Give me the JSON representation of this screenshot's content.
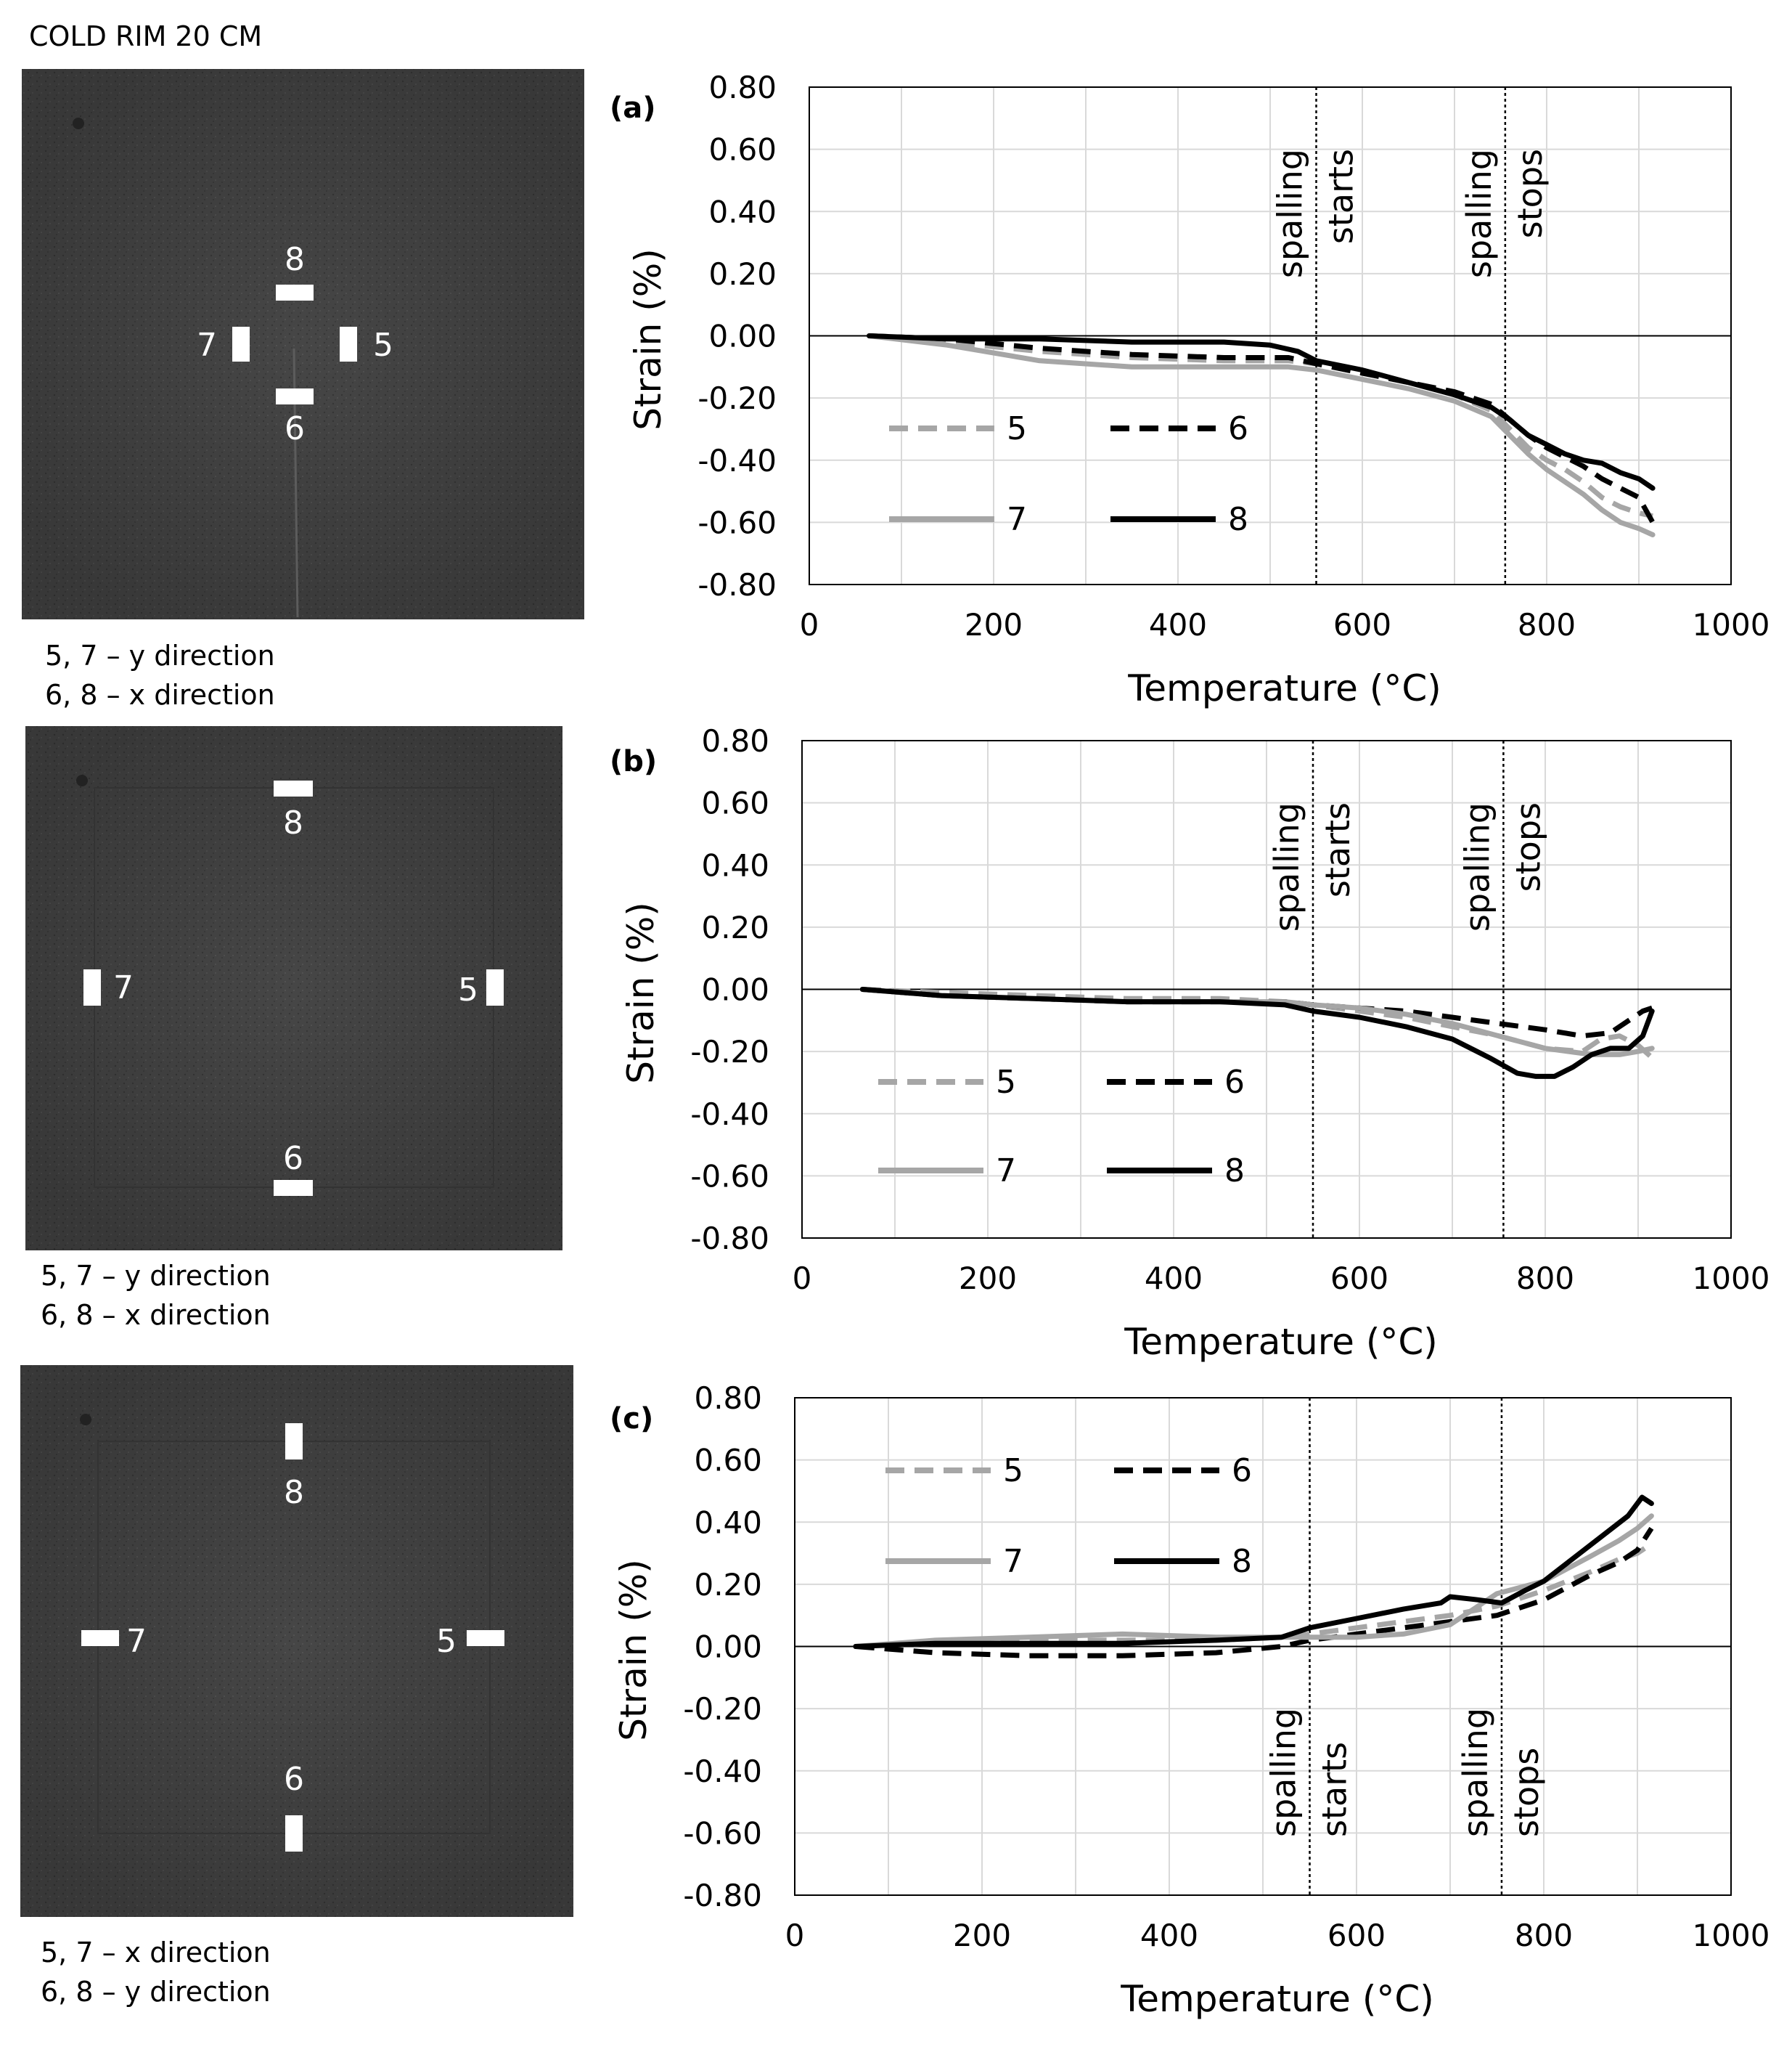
{
  "header": "COLD RIM 20 CM",
  "photos": [
    {
      "caption_lines": [
        "5, 7 – y direction",
        "6, 8 – x direction"
      ],
      "gauge_labels": [
        "5",
        "6",
        "7",
        "8"
      ]
    },
    {
      "caption_lines": [
        "5, 7 – y direction",
        "6, 8 – x direction"
      ],
      "gauge_labels": [
        "5",
        "6",
        "7",
        "8"
      ]
    },
    {
      "caption_lines": [
        "5, 7 – x direction",
        "6, 8 – y direction"
      ],
      "gauge_labels": [
        "5",
        "6",
        "7",
        "8"
      ]
    }
  ],
  "chart_data": [
    {
      "type": "line",
      "panel_label": "(a)",
      "xlabel": "Temperature (°C)",
      "ylabel": "Strain (%)",
      "xlim": [
        0,
        1000
      ],
      "ylim": [
        -0.8,
        0.8
      ],
      "xticks": [
        "0",
        "200",
        "400",
        "600",
        "800",
        "1000"
      ],
      "yticks": [
        "0.80",
        "0.60",
        "0.40",
        "0.20",
        "0.00",
        "-0.20",
        "-0.40",
        "-0.60",
        "-0.80"
      ],
      "grid": true,
      "legend_position": "lower-left",
      "markers": [
        {
          "x": 550,
          "lines": [
            "spalling",
            "starts"
          ]
        },
        {
          "x": 755,
          "lines": [
            "spalling",
            "stops"
          ]
        }
      ],
      "series": [
        {
          "name": "5",
          "color": "#a6a6a6",
          "dash": "dashed",
          "x": [
            65,
            150,
            250,
            350,
            450,
            520,
            550,
            600,
            650,
            700,
            740,
            760,
            780,
            800,
            820,
            840,
            860,
            880,
            900,
            915
          ],
          "y": [
            0,
            -0.02,
            -0.05,
            -0.07,
            -0.08,
            -0.08,
            -0.09,
            -0.12,
            -0.15,
            -0.19,
            -0.24,
            -0.3,
            -0.36,
            -0.4,
            -0.43,
            -0.47,
            -0.52,
            -0.55,
            -0.57,
            -0.58
          ]
        },
        {
          "name": "6",
          "color": "#000000",
          "dash": "dashed",
          "x": [
            65,
            150,
            250,
            350,
            450,
            520,
            550,
            600,
            650,
            700,
            740,
            760,
            780,
            800,
            820,
            840,
            860,
            880,
            900,
            915
          ],
          "y": [
            0,
            -0.01,
            -0.04,
            -0.06,
            -0.07,
            -0.07,
            -0.09,
            -0.12,
            -0.15,
            -0.18,
            -0.22,
            -0.27,
            -0.32,
            -0.36,
            -0.39,
            -0.42,
            -0.46,
            -0.49,
            -0.52,
            -0.6
          ]
        },
        {
          "name": "7",
          "color": "#a6a6a6",
          "dash": "solid",
          "x": [
            65,
            150,
            250,
            350,
            450,
            520,
            550,
            600,
            650,
            700,
            740,
            760,
            780,
            800,
            820,
            840,
            860,
            880,
            900,
            915
          ],
          "y": [
            0,
            -0.03,
            -0.08,
            -0.1,
            -0.1,
            -0.1,
            -0.11,
            -0.14,
            -0.17,
            -0.21,
            -0.26,
            -0.32,
            -0.38,
            -0.43,
            -0.47,
            -0.51,
            -0.56,
            -0.6,
            -0.62,
            -0.64
          ]
        },
        {
          "name": "8",
          "color": "#000000",
          "dash": "solid",
          "x": [
            65,
            150,
            250,
            350,
            450,
            500,
            530,
            550,
            600,
            650,
            700,
            740,
            760,
            780,
            800,
            820,
            840,
            860,
            880,
            900,
            915
          ],
          "y": [
            0,
            -0.01,
            -0.01,
            -0.02,
            -0.02,
            -0.03,
            -0.05,
            -0.08,
            -0.11,
            -0.15,
            -0.19,
            -0.23,
            -0.27,
            -0.32,
            -0.35,
            -0.38,
            -0.4,
            -0.41,
            -0.44,
            -0.46,
            -0.49
          ]
        }
      ]
    },
    {
      "type": "line",
      "panel_label": "(b)",
      "xlabel": "Temperature (°C)",
      "ylabel": "Strain (%)",
      "xlim": [
        0,
        1000
      ],
      "ylim": [
        -0.8,
        0.8
      ],
      "xticks": [
        "0",
        "200",
        "400",
        "600",
        "800",
        "1000"
      ],
      "yticks": [
        "0.80",
        "0.60",
        "0.40",
        "0.20",
        "0.00",
        "-0.20",
        "-0.40",
        "-0.60",
        "-0.80"
      ],
      "grid": true,
      "legend_position": "lower-left",
      "markers": [
        {
          "x": 550,
          "lines": [
            "spalling",
            "starts"
          ]
        },
        {
          "x": 755,
          "lines": [
            "spalling",
            "stops"
          ]
        }
      ],
      "series": [
        {
          "name": "5",
          "color": "#a6a6a6",
          "dash": "dashed",
          "x": [
            65,
            150,
            250,
            350,
            450,
            520,
            550,
            600,
            650,
            700,
            750,
            800,
            840,
            860,
            880,
            900,
            915
          ],
          "y": [
            0,
            -0.01,
            -0.02,
            -0.03,
            -0.03,
            -0.04,
            -0.05,
            -0.07,
            -0.09,
            -0.12,
            -0.15,
            -0.19,
            -0.2,
            -0.16,
            -0.15,
            -0.18,
            -0.22
          ]
        },
        {
          "name": "6",
          "color": "#000000",
          "dash": "dashed",
          "x": [
            65,
            150,
            250,
            350,
            450,
            520,
            550,
            600,
            650,
            700,
            750,
            800,
            840,
            870,
            890,
            905,
            915
          ],
          "y": [
            0,
            -0.02,
            -0.03,
            -0.04,
            -0.04,
            -0.04,
            -0.05,
            -0.06,
            -0.07,
            -0.09,
            -0.11,
            -0.13,
            -0.15,
            -0.14,
            -0.1,
            -0.07,
            -0.06
          ]
        },
        {
          "name": "7",
          "color": "#a6a6a6",
          "dash": "solid",
          "x": [
            65,
            150,
            250,
            350,
            450,
            520,
            550,
            600,
            650,
            700,
            750,
            800,
            850,
            880,
            900,
            915
          ],
          "y": [
            0,
            -0.02,
            -0.03,
            -0.04,
            -0.04,
            -0.04,
            -0.05,
            -0.06,
            -0.08,
            -0.11,
            -0.15,
            -0.19,
            -0.21,
            -0.21,
            -0.2,
            -0.19
          ]
        },
        {
          "name": "8",
          "color": "#000000",
          "dash": "solid",
          "x": [
            65,
            150,
            250,
            350,
            450,
            520,
            550,
            600,
            650,
            700,
            740,
            770,
            790,
            810,
            830,
            850,
            870,
            890,
            905,
            915
          ],
          "y": [
            0,
            -0.02,
            -0.03,
            -0.04,
            -0.04,
            -0.05,
            -0.07,
            -0.09,
            -0.12,
            -0.16,
            -0.22,
            -0.27,
            -0.28,
            -0.28,
            -0.25,
            -0.21,
            -0.19,
            -0.19,
            -0.15,
            -0.07
          ]
        }
      ]
    },
    {
      "type": "line",
      "panel_label": "(c)",
      "xlabel": "Temperature (°C)",
      "ylabel": "Strain (%)",
      "xlim": [
        0,
        1000
      ],
      "ylim": [
        -0.8,
        0.8
      ],
      "xticks": [
        "0",
        "200",
        "400",
        "600",
        "800",
        "1000"
      ],
      "yticks": [
        "0.80",
        "0.60",
        "0.40",
        "0.20",
        "0.00",
        "-0.20",
        "-0.40",
        "-0.60",
        "-0.80"
      ],
      "grid": true,
      "legend_position": "upper-left",
      "markers": [
        {
          "x": 550,
          "lines": [
            "spalling",
            "starts"
          ]
        },
        {
          "x": 755,
          "lines": [
            "spalling",
            "stops"
          ]
        }
      ],
      "series": [
        {
          "name": "5",
          "color": "#a6a6a6",
          "dash": "dashed",
          "x": [
            65,
            150,
            250,
            350,
            450,
            520,
            550,
            600,
            650,
            700,
            750,
            800,
            850,
            880,
            900,
            915
          ],
          "y": [
            0,
            0.01,
            0.02,
            0.02,
            0.02,
            0.03,
            0.04,
            0.06,
            0.08,
            0.1,
            0.13,
            0.18,
            0.24,
            0.28,
            0.3,
            0.33
          ]
        },
        {
          "name": "6",
          "color": "#000000",
          "dash": "dashed",
          "x": [
            65,
            150,
            250,
            300,
            350,
            450,
            520,
            550,
            600,
            650,
            700,
            750,
            800,
            850,
            880,
            900,
            915
          ],
          "y": [
            0,
            -0.02,
            -0.03,
            -0.03,
            -0.03,
            -0.02,
            0.0,
            0.02,
            0.04,
            0.06,
            0.08,
            0.1,
            0.15,
            0.23,
            0.27,
            0.31,
            0.38
          ]
        },
        {
          "name": "7",
          "color": "#a6a6a6",
          "dash": "solid",
          "x": [
            65,
            150,
            250,
            350,
            450,
            520,
            550,
            600,
            650,
            700,
            750,
            800,
            850,
            880,
            900,
            915
          ],
          "y": [
            0,
            0.02,
            0.03,
            0.04,
            0.03,
            0.03,
            0.03,
            0.03,
            0.04,
            0.07,
            0.17,
            0.21,
            0.29,
            0.34,
            0.38,
            0.42
          ]
        },
        {
          "name": "8",
          "color": "#000000",
          "dash": "solid",
          "x": [
            65,
            150,
            250,
            350,
            450,
            520,
            550,
            600,
            650,
            690,
            700,
            730,
            755,
            780,
            800,
            830,
            860,
            890,
            905,
            915
          ],
          "y": [
            0,
            0.01,
            0.01,
            0.01,
            0.02,
            0.03,
            0.06,
            0.09,
            0.12,
            0.14,
            0.16,
            0.15,
            0.14,
            0.18,
            0.21,
            0.28,
            0.35,
            0.42,
            0.48,
            0.46
          ]
        }
      ]
    }
  ]
}
